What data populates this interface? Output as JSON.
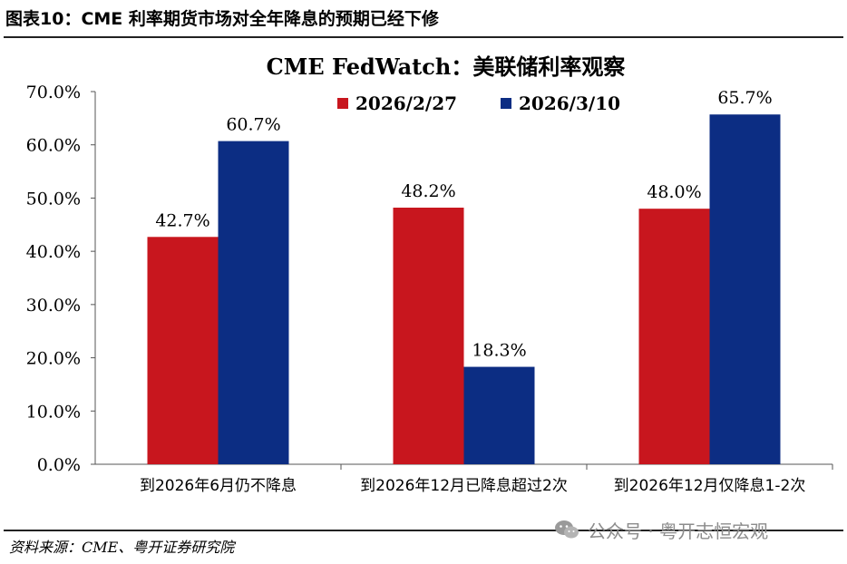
{
  "figure_title": "图表10：CME 利率期货市场对全年降息的预期已经下修",
  "source_note": "资料来源：CME、粤开证券研究院",
  "watermark": {
    "text": "公众号 · 粤开志恒宏观",
    "icon": "wechat-icon",
    "color": "#8c8c8c"
  },
  "chart_data": {
    "type": "bar",
    "title": "CME FedWatch：美联储利率观察",
    "categories": [
      "到2026年6月仍不降息",
      "到2026年12月已降息超过2次",
      "到2026年12月仅降息1-2次"
    ],
    "series": [
      {
        "name": "2026/2/27",
        "color": "#c8161e",
        "values": [
          42.7,
          48.2,
          48.0
        ],
        "labels": [
          "42.7%",
          "48.2%",
          "48.0%"
        ]
      },
      {
        "name": "2026/3/10",
        "color": "#0c2d83",
        "values": [
          60.7,
          18.3,
          65.7
        ],
        "labels": [
          "60.7%",
          "18.3%",
          "65.7%"
        ]
      }
    ],
    "ylim": [
      0,
      70
    ],
    "yticks": [
      "0.0%",
      "10.0%",
      "20.0%",
      "30.0%",
      "40.0%",
      "50.0%",
      "60.0%",
      "70.0%"
    ],
    "legend": "top-right",
    "grid": false
  }
}
